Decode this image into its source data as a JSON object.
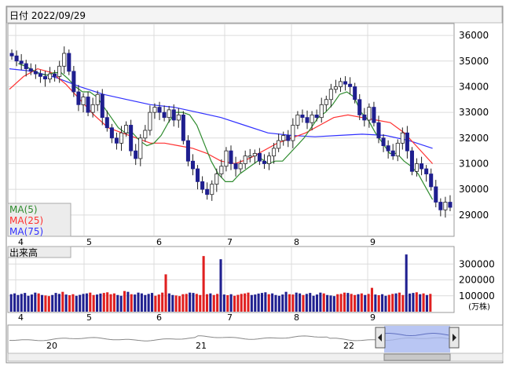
{
  "header": {
    "date_label": "日付 2022/09/29"
  },
  "legend": [
    {
      "name": "MA(5)",
      "color": "#2e8b2e"
    },
    {
      "name": "MA(25)",
      "color": "#ff3030"
    },
    {
      "name": "MA(75)",
      "color": "#3030ff"
    }
  ],
  "volume_label": "出来高",
  "volume_unit": "(万株)",
  "colors": {
    "up": "#ffffff",
    "down": "#1f1f8f",
    "vol_up": "#e02020",
    "vol_down": "#202090",
    "overview_fill": "#a8b8f0"
  },
  "chart_data": [
    {
      "type": "candlestick",
      "title": "",
      "x_month_labels": [
        "4",
        "5",
        "6",
        "7",
        "8",
        "9"
      ],
      "y_ticks": [
        29000,
        30000,
        31000,
        32000,
        33000,
        34000,
        35000,
        36000
      ],
      "ylim": [
        28200,
        36400
      ],
      "closes": [
        35200,
        35000,
        34900,
        34700,
        34600,
        34500,
        34400,
        34300,
        34500,
        34400,
        34800,
        35300,
        34600,
        33800,
        33300,
        33600,
        33000,
        33300,
        33700,
        32800,
        32400,
        32000,
        31800,
        32200,
        32500,
        31500,
        31200,
        32000,
        32300,
        33000,
        33200,
        33000,
        32800,
        33100,
        32700,
        32900,
        31900,
        31100,
        30800,
        30300,
        30000,
        29800,
        30200,
        30600,
        30900,
        31500,
        31000,
        30800,
        31000,
        31300,
        31300,
        31400,
        31100,
        31000,
        31300,
        31600,
        31900,
        32100,
        31900,
        32500,
        32900,
        32800,
        32600,
        32900,
        32800,
        33300,
        33500,
        33900,
        34000,
        34200,
        34100,
        34000,
        33500,
        32900,
        32700,
        33200,
        32600,
        32000,
        31700,
        31500,
        31300,
        31800,
        32200,
        31500,
        30700,
        31000,
        30800,
        30600,
        30100,
        29500,
        29200,
        29500,
        29300
      ],
      "ma": {
        "MA(5)": [
          34900,
          34800,
          34650,
          34500,
          34450,
          34550,
          34550,
          34300,
          34000,
          33800,
          33800,
          33600,
          33200,
          32800,
          32400,
          32200,
          32200,
          31900,
          31700,
          31800,
          32100,
          32600,
          33000,
          33000,
          32900,
          32500,
          31800,
          31100,
          30600,
          30300,
          30300,
          30600,
          30800,
          31000,
          31200,
          31000,
          31100,
          31100,
          31400,
          31700,
          32000,
          32400,
          32800,
          33000,
          33300,
          33700,
          33800,
          33600,
          33000,
          32700,
          32200,
          31800,
          31400,
          31400,
          31100,
          30900,
          30600,
          30100,
          29600
        ],
        "MA(25)": [
          33900,
          34400,
          34700,
          34550,
          34100,
          33500,
          32900,
          32400,
          32200,
          32000,
          31800,
          31800,
          31700,
          31600,
          31400,
          31100,
          31000,
          31200,
          31500,
          31800,
          32000,
          32200,
          32500,
          32800,
          32900,
          32800,
          32700,
          32600,
          32200,
          31600,
          31000
        ],
        "MA(75)": [
          34700,
          34600,
          34350,
          34000,
          33700,
          33500,
          33300,
          33200,
          33000,
          32800,
          32500,
          32200,
          32100,
          32050,
          32100,
          32150,
          32100,
          31900,
          31600
        ]
      }
    },
    {
      "type": "bar",
      "title": "出来高",
      "y_ticks": [
        100000,
        200000,
        300000
      ],
      "ylim": [
        0,
        400000
      ],
      "values": [
        110000,
        115000,
        105000,
        112000,
        118000,
        100000,
        108000,
        120000,
        115000,
        105000,
        102000,
        98000,
        105000,
        118000,
        112000,
        125000,
        108000,
        104000,
        110000,
        100000,
        106000,
        112000,
        115000,
        120000,
        105000,
        108000,
        114000,
        118000,
        122000,
        110000,
        115000,
        105000,
        100000,
        130000,
        125000,
        110000,
        108000,
        120000,
        115000,
        105000,
        112000,
        118000,
        100000,
        108000,
        120000,
        235000,
        115000,
        105000,
        102000,
        98000,
        110000,
        112000,
        120000,
        118000,
        112000,
        105000,
        350000,
        110000,
        115000,
        105000,
        112000,
        330000,
        108000,
        104000,
        110000,
        100000,
        106000,
        112000,
        115000,
        120000,
        105000,
        108000,
        114000,
        118000,
        122000,
        110000,
        115000,
        105000,
        100000,
        108000,
        125000,
        110000,
        108000,
        120000,
        115000,
        105000,
        112000,
        118000,
        100000,
        108000,
        120000,
        115000,
        105000,
        102000,
        98000,
        110000,
        112000,
        120000,
        118000,
        112000,
        105000,
        110000,
        115000,
        105000,
        112000,
        150000,
        108000,
        104000,
        110000,
        100000,
        106000,
        112000,
        115000,
        120000,
        105000,
        360000,
        114000,
        118000,
        122000,
        110000,
        115000,
        105000,
        112000
      ],
      "up": [
        0,
        0,
        0,
        0,
        0,
        0,
        0,
        0,
        1,
        0,
        1,
        1,
        0,
        0,
        0,
        1,
        0,
        1,
        1,
        0,
        0,
        0,
        0,
        1,
        1,
        0,
        0,
        1,
        1,
        1,
        1,
        0,
        0,
        1,
        0,
        1,
        0,
        0,
        0,
        0,
        0,
        0,
        1,
        1,
        1,
        1,
        0,
        0,
        1,
        1,
        1,
        1,
        0,
        0,
        1,
        1,
        1,
        1,
        0,
        1,
        1,
        0,
        0,
        1,
        0,
        1,
        1,
        1,
        1,
        1,
        0,
        0,
        0,
        0,
        0,
        1,
        0,
        0,
        0,
        0,
        0,
        1,
        1,
        0,
        0,
        1,
        0,
        0,
        0,
        0,
        0,
        1,
        0,
        0,
        0,
        1,
        1,
        1,
        0,
        1,
        1,
        0,
        1,
        0,
        1,
        1,
        0,
        1,
        0,
        0,
        1,
        1,
        0,
        1,
        1,
        0,
        0,
        0,
        1,
        0,
        1,
        0,
        1
      ]
    }
  ],
  "overview": {
    "labels": [
      "20",
      "21",
      "22"
    ]
  }
}
